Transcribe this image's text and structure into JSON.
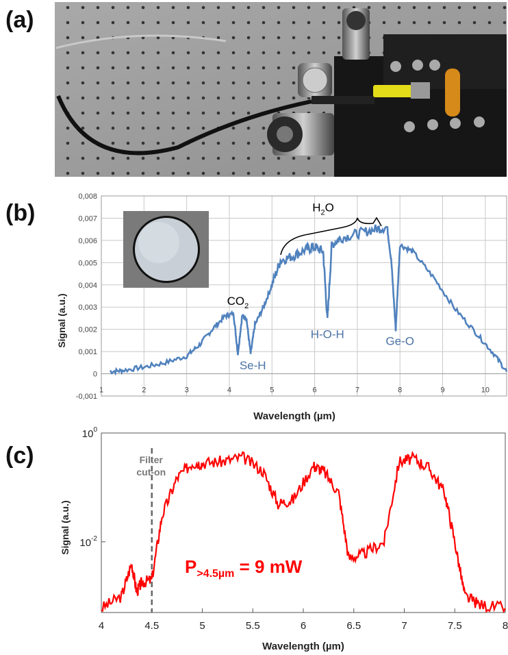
{
  "panels": {
    "a": "(a)",
    "b": "(b)",
    "c": "(c)"
  },
  "chart_data": [
    {
      "type": "line",
      "panel": "(b)",
      "xlabel": "Wavelength (µm)",
      "ylabel": "Signal (a.u.)",
      "xlim": [
        1,
        10.5
      ],
      "ylim": [
        -0.001,
        0.008
      ],
      "x_ticks": [
        "1",
        "2",
        "3",
        "4",
        "5",
        "6",
        "7",
        "8",
        "9",
        "10"
      ],
      "y_ticks": [
        "-0,001",
        "0",
        "0,001",
        "0,002",
        "0,003",
        "0,004",
        "0,005",
        "0,006",
        "0,007",
        "0,008"
      ],
      "grid": true,
      "series_color": "#4f81bd",
      "x": [
        1.2,
        1.5,
        2.0,
        2.5,
        3.0,
        3.3,
        3.6,
        3.9,
        4.1,
        4.2,
        4.3,
        4.4,
        4.5,
        4.6,
        4.8,
        5.0,
        5.2,
        5.5,
        5.8,
        6.0,
        6.2,
        6.3,
        6.4,
        6.6,
        7.0,
        7.4,
        7.7,
        7.8,
        7.9,
        8.0,
        8.3,
        8.8,
        9.3,
        9.8,
        10.2,
        10.5
      ],
      "y": [
        0.0001,
        0.00015,
        0.0003,
        0.0005,
        0.0008,
        0.0013,
        0.002,
        0.0026,
        0.0027,
        0.0009,
        0.0026,
        0.0025,
        0.0009,
        0.0022,
        0.003,
        0.004,
        0.0051,
        0.0053,
        0.0056,
        0.0057,
        0.0055,
        0.0024,
        0.0058,
        0.0061,
        0.0063,
        0.0065,
        0.0066,
        0.005,
        0.002,
        0.0058,
        0.0055,
        0.0043,
        0.0029,
        0.0018,
        0.0009,
        0.0001
      ],
      "annotations": [
        {
          "text": "CO",
          "sub": "2",
          "x": 4.2,
          "y": 0.0031
        },
        {
          "text": "Se-H",
          "x": 4.55,
          "y": 0.0002
        },
        {
          "text": "H",
          "sub": "2",
          "text2": "O",
          "x": 6.2,
          "y": 0.0073
        },
        {
          "text": "H-O-H",
          "x": 6.3,
          "y": 0.0016
        },
        {
          "text": "Ge-O",
          "x": 8.0,
          "y": 0.0013
        }
      ]
    },
    {
      "type": "line",
      "panel": "(c)",
      "xlabel": "Wavelength (µm)",
      "ylabel": "Signal (a.u.)",
      "xlim": [
        4,
        8
      ],
      "y_scale": "log",
      "y_ticks": [
        {
          "base": "10",
          "exp": "0"
        },
        {
          "base": "10",
          "exp": "-2"
        }
      ],
      "x_ticks": [
        "4",
        "4.5",
        "5",
        "5.5",
        "6",
        "6.5",
        "7",
        "7.5",
        "8"
      ],
      "series_color": "#ff0000",
      "x": [
        4.0,
        4.2,
        4.3,
        4.35,
        4.4,
        4.5,
        4.6,
        4.75,
        4.9,
        5.0,
        5.2,
        5.4,
        5.6,
        5.75,
        5.9,
        6.1,
        6.2,
        6.35,
        6.45,
        6.6,
        6.8,
        6.95,
        7.1,
        7.25,
        7.4,
        7.5,
        7.6,
        7.75,
        8.0
      ],
      "y": [
        0.0006,
        0.001,
        0.004,
        0.0012,
        0.0018,
        0.002,
        0.03,
        0.15,
        0.28,
        0.28,
        0.3,
        0.36,
        0.2,
        0.05,
        0.06,
        0.25,
        0.2,
        0.08,
        0.005,
        0.006,
        0.01,
        0.3,
        0.34,
        0.22,
        0.08,
        0.01,
        0.001,
        0.0007,
        0.0006
      ],
      "annotations": [
        {
          "text": "Filter",
          "x": 4.5
        },
        {
          "text": "cut-on",
          "x": 4.5
        }
      ],
      "power_label": {
        "main": "P",
        "sub": ">4.5µm",
        "rest": " = 9 mW"
      }
    }
  ]
}
